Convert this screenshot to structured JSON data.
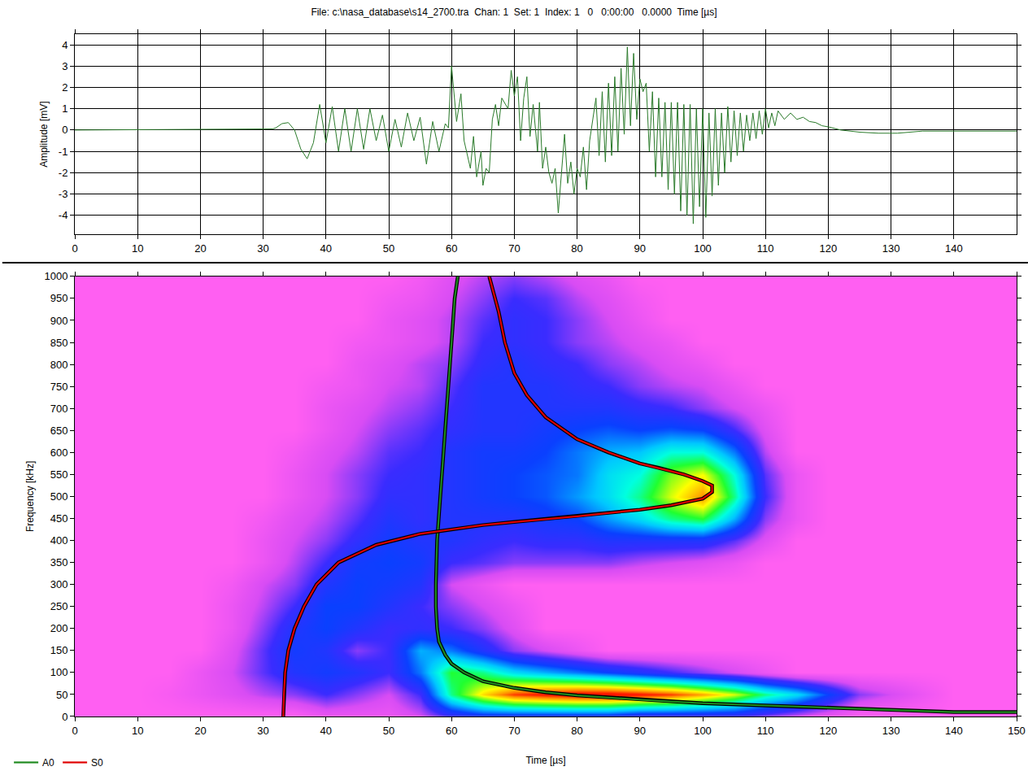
{
  "chart_data": [
    {
      "type": "line",
      "title": "File: c:\\nasa_database\\s14_2700.tra  Chan: 1  Set: 1  Index: 1   0   0:00:00   0.0000  Time [µs]",
      "ylabel": "Amplitude [mV]",
      "color": "#2a7a2a",
      "grid": true,
      "xlim": [
        0,
        150
      ],
      "ylim": [
        -4.9,
        4.5
      ],
      "xticks": [
        0,
        10,
        20,
        30,
        40,
        50,
        60,
        70,
        80,
        90,
        100,
        110,
        120,
        130,
        140
      ],
      "yticks": [
        -4,
        -3,
        -2,
        -1,
        0,
        1,
        2,
        3,
        4
      ],
      "x": [
        0,
        31.5,
        32,
        33,
        34,
        35,
        36,
        37,
        38,
        39,
        40,
        41,
        42,
        43,
        44,
        45,
        46,
        47,
        48,
        49,
        50,
        51,
        52,
        53,
        54,
        55,
        56,
        57,
        58,
        59,
        59.5,
        60,
        60.8,
        61.5,
        62,
        63,
        63.5,
        64,
        64.7,
        65,
        65.5,
        66,
        66.5,
        67,
        67.5,
        68,
        69,
        69.5,
        70,
        70.5,
        71,
        71.5,
        72,
        72.5,
        73,
        73.7,
        74,
        74.5,
        75,
        75.5,
        76,
        76.5,
        77,
        77.5,
        78,
        78.5,
        79,
        79.5,
        80,
        80.5,
        81,
        81.5,
        82,
        83,
        83.5,
        84,
        84.5,
        85,
        85.5,
        86,
        86.5,
        87,
        87.5,
        88,
        88.5,
        89,
        89.5,
        90,
        90.5,
        91,
        91.5,
        92,
        92.5,
        93,
        93.5,
        94,
        94.5,
        95,
        95.5,
        96,
        96.5,
        97,
        97.5,
        98,
        98.5,
        99,
        99.5,
        100,
        100.5,
        101,
        101.5,
        102,
        102.5,
        103,
        103.5,
        104,
        104.5,
        105,
        105.5,
        106,
        106.5,
        107,
        107.5,
        108,
        108.5,
        109,
        109.5,
        110,
        110.5,
        111,
        111.5,
        112,
        113,
        114,
        115,
        116,
        117,
        118,
        119,
        120,
        122,
        125,
        128,
        131,
        135,
        140,
        150
      ],
      "values": [
        0,
        0.05,
        0.1,
        0.3,
        0.35,
        0,
        -0.9,
        -1.35,
        -0.6,
        1.2,
        -0.6,
        1.1,
        -1,
        1,
        -1,
        1,
        -0.9,
        1,
        -0.5,
        0.7,
        -1,
        0.5,
        -0.8,
        0.8,
        -0.5,
        0.6,
        -1.6,
        0.4,
        -1,
        0.3,
        0.1,
        3,
        0.4,
        1.7,
        -0.5,
        -1.8,
        -0.3,
        -2.2,
        -1,
        -2.6,
        -1.8,
        -2,
        0.5,
        1.2,
        0.2,
        1.5,
        1,
        2.8,
        1.6,
        2.5,
        -0.5,
        1.5,
        2.5,
        -0.3,
        1.2,
        -1,
        1.3,
        -1.8,
        -0.8,
        -2,
        -2.5,
        -1.8,
        -3.9,
        -2,
        -0.2,
        -2.5,
        -1.5,
        -3,
        -1.8,
        -2.2,
        -0.8,
        -2.8,
        -0.5,
        1.5,
        -1.2,
        1.8,
        -1.5,
        2.2,
        -1.2,
        2.5,
        -1,
        2.9,
        -0.2,
        3.9,
        0.2,
        3.6,
        0.5,
        2.4,
        1.8,
        2.2,
        -1,
        1.8,
        -2.2,
        1.5,
        -2.2,
        1.3,
        -2.8,
        1.3,
        -3,
        1.3,
        -3.8,
        1.2,
        -4,
        1.2,
        -4.4,
        1,
        -3.6,
        1,
        -4.1,
        0.8,
        -3.1,
        1,
        -2.6,
        0.8,
        -2,
        1.1,
        -1.5,
        0.9,
        -1.2,
        0.8,
        -1,
        0.7,
        -0.5,
        0.8,
        -0.4,
        0.9,
        -0.2,
        1,
        0.1,
        0.8,
        0.2,
        0.9,
        0.5,
        0.8,
        0.5,
        0.6,
        0.4,
        0.35,
        0.2,
        0.15,
        0,
        -0.1,
        -0.15,
        -0.15,
        -0.05,
        -0.05,
        -0.05
      ]
    },
    {
      "type": "heatmap",
      "xlabel": "Time [µs]",
      "ylabel": "Frequency [kHz]",
      "grid": false,
      "legend": "bottom left",
      "xlim": [
        0,
        150
      ],
      "ylim": [
        0,
        1000
      ],
      "xticks": [
        0,
        10,
        20,
        30,
        40,
        50,
        60,
        70,
        80,
        90,
        100,
        110,
        120,
        130,
        140,
        150
      ],
      "yticks": [
        0,
        50,
        100,
        150,
        200,
        250,
        300,
        350,
        400,
        450,
        500,
        550,
        600,
        650,
        700,
        750,
        800,
        850,
        900,
        950,
        1000
      ],
      "zlim": [
        0,
        100
      ],
      "x": [
        0,
        5,
        10,
        15,
        20,
        25,
        30,
        35,
        40,
        45,
        50,
        55,
        60,
        65,
        70,
        75,
        80,
        85,
        90,
        95,
        100,
        105,
        110,
        115,
        120,
        125,
        130,
        135,
        140,
        145,
        150
      ],
      "y": [
        0,
        50,
        100,
        150,
        200,
        250,
        300,
        350,
        400,
        450,
        500,
        550,
        600,
        650,
        700,
        750,
        800,
        850,
        900,
        950,
        1000
      ],
      "z": [
        [
          0,
          0,
          0,
          0,
          0,
          0,
          0,
          0,
          5,
          5,
          5,
          10,
          20,
          25,
          25,
          25,
          25,
          25,
          20,
          20,
          20,
          20,
          15,
          10,
          5,
          0,
          0,
          0,
          0,
          0,
          0
        ],
        [
          0,
          0,
          0,
          2,
          5,
          8,
          12,
          15,
          20,
          15,
          10,
          20,
          55,
          75,
          88,
          92,
          95,
          95,
          92,
          88,
          80,
          70,
          55,
          45,
          30,
          15,
          10,
          5,
          0,
          0,
          0
        ],
        [
          0,
          0,
          0,
          0,
          5,
          10,
          18,
          25,
          28,
          25,
          20,
          35,
          60,
          55,
          45,
          40,
          35,
          30,
          25,
          20,
          15,
          10,
          5,
          0,
          0,
          0,
          0,
          0,
          0,
          0,
          0
        ],
        [
          0,
          0,
          0,
          0,
          0,
          8,
          18,
          28,
          25,
          15,
          20,
          40,
          35,
          25,
          15,
          10,
          5,
          0,
          0,
          0,
          0,
          0,
          0,
          0,
          0,
          0,
          0,
          0,
          0,
          0,
          0
        ],
        [
          0,
          0,
          0,
          0,
          0,
          5,
          15,
          25,
          30,
          25,
          20,
          22,
          20,
          15,
          8,
          0,
          0,
          0,
          0,
          0,
          0,
          0,
          0,
          0,
          0,
          0,
          0,
          0,
          0,
          0,
          0
        ],
        [
          0,
          0,
          0,
          0,
          0,
          5,
          12,
          20,
          30,
          30,
          25,
          20,
          15,
          10,
          5,
          0,
          0,
          0,
          0,
          0,
          0,
          0,
          0,
          0,
          0,
          0,
          0,
          0,
          0,
          0,
          0
        ],
        [
          0,
          0,
          0,
          0,
          0,
          3,
          10,
          15,
          25,
          30,
          28,
          25,
          10,
          5,
          0,
          0,
          0,
          0,
          0,
          0,
          0,
          0,
          0,
          0,
          0,
          0,
          0,
          0,
          0,
          0,
          0
        ],
        [
          0,
          0,
          0,
          0,
          0,
          0,
          5,
          12,
          20,
          28,
          30,
          28,
          20,
          18,
          15,
          15,
          15,
          15,
          12,
          10,
          8,
          5,
          0,
          0,
          0,
          0,
          0,
          0,
          0,
          0,
          0
        ],
        [
          0,
          0,
          0,
          0,
          0,
          0,
          5,
          10,
          15,
          22,
          28,
          25,
          25,
          22,
          20,
          22,
          22,
          25,
          25,
          25,
          25,
          18,
          8,
          0,
          0,
          0,
          0,
          0,
          0,
          0,
          0
        ],
        [
          0,
          0,
          0,
          0,
          0,
          0,
          3,
          8,
          12,
          18,
          25,
          22,
          25,
          25,
          25,
          28,
          30,
          38,
          45,
          55,
          60,
          40,
          15,
          5,
          0,
          0,
          0,
          0,
          0,
          0,
          0
        ],
        [
          0,
          0,
          0,
          0,
          0,
          0,
          0,
          5,
          10,
          15,
          22,
          22,
          25,
          28,
          30,
          32,
          38,
          45,
          55,
          70,
          82,
          55,
          20,
          5,
          0,
          0,
          0,
          0,
          0,
          0,
          0
        ],
        [
          0,
          0,
          0,
          0,
          0,
          0,
          0,
          5,
          10,
          15,
          20,
          22,
          25,
          28,
          30,
          32,
          35,
          45,
          50,
          65,
          72,
          50,
          18,
          5,
          0,
          0,
          0,
          0,
          0,
          0,
          0
        ],
        [
          0,
          0,
          0,
          0,
          0,
          0,
          0,
          3,
          8,
          12,
          18,
          20,
          25,
          28,
          28,
          30,
          35,
          40,
          42,
          50,
          50,
          35,
          12,
          0,
          0,
          0,
          0,
          0,
          0,
          0,
          0
        ],
        [
          0,
          0,
          0,
          0,
          0,
          0,
          0,
          0,
          5,
          10,
          15,
          18,
          22,
          25,
          25,
          28,
          30,
          32,
          30,
          32,
          30,
          20,
          8,
          0,
          0,
          0,
          0,
          0,
          0,
          0,
          0
        ],
        [
          0,
          0,
          0,
          0,
          0,
          0,
          0,
          0,
          5,
          8,
          12,
          15,
          20,
          25,
          25,
          25,
          25,
          25,
          22,
          20,
          15,
          10,
          5,
          0,
          0,
          0,
          0,
          0,
          0,
          0,
          0
        ],
        [
          0,
          0,
          0,
          0,
          0,
          0,
          0,
          0,
          3,
          5,
          10,
          12,
          18,
          25,
          25,
          25,
          22,
          20,
          15,
          12,
          10,
          5,
          0,
          0,
          0,
          0,
          0,
          0,
          0,
          0,
          0
        ],
        [
          0,
          0,
          0,
          0,
          0,
          0,
          0,
          0,
          0,
          5,
          8,
          12,
          15,
          22,
          25,
          22,
          20,
          15,
          12,
          8,
          5,
          0,
          0,
          0,
          0,
          0,
          0,
          0,
          0,
          0,
          0
        ],
        [
          0,
          0,
          0,
          0,
          0,
          0,
          0,
          0,
          0,
          3,
          5,
          8,
          12,
          20,
          22,
          20,
          15,
          12,
          8,
          5,
          0,
          0,
          0,
          0,
          0,
          0,
          0,
          0,
          0,
          0,
          0
        ],
        [
          0,
          0,
          0,
          0,
          0,
          0,
          0,
          0,
          0,
          0,
          5,
          8,
          12,
          18,
          22,
          20,
          15,
          10,
          5,
          0,
          0,
          0,
          0,
          0,
          0,
          0,
          0,
          0,
          0,
          0,
          0
        ],
        [
          0,
          0,
          0,
          0,
          0,
          0,
          0,
          0,
          0,
          0,
          3,
          5,
          10,
          15,
          20,
          18,
          12,
          8,
          3,
          0,
          0,
          0,
          0,
          0,
          0,
          0,
          0,
          0,
          0,
          0,
          0
        ],
        [
          0,
          0,
          0,
          0,
          0,
          0,
          0,
          0,
          0,
          0,
          0,
          3,
          8,
          12,
          15,
          12,
          8,
          5,
          0,
          0,
          0,
          0,
          0,
          0,
          0,
          0,
          0,
          0,
          0,
          0,
          0
        ]
      ],
      "series": [
        {
          "name": "A0",
          "type": "line",
          "color": "#1f8a1f",
          "x": [
            61,
            60.5,
            60,
            59.5,
            59,
            58.5,
            58,
            57.7,
            57.5,
            57.5,
            57.7,
            58,
            59,
            60,
            62,
            65,
            70,
            75,
            80,
            90,
            100,
            110,
            120,
            130,
            136,
            140,
            150
          ],
          "values": [
            1000,
            950,
            850,
            750,
            650,
            550,
            450,
            400,
            300,
            250,
            200,
            170,
            140,
            120,
            100,
            80,
            65,
            55,
            48,
            38,
            30,
            25,
            20,
            15,
            12,
            10,
            10
          ]
        },
        {
          "name": "S0",
          "type": "line",
          "color": "#e00000",
          "x": [
            33.2,
            33.3,
            33.5,
            34,
            35,
            36.5,
            38.5,
            42,
            48,
            55,
            60,
            65,
            70,
            80,
            90,
            95,
            100,
            101.5,
            101.5,
            100,
            97,
            93,
            90,
            85,
            80,
            75,
            72,
            70,
            68.5,
            67.5,
            66
          ],
          "values": [
            0,
            50,
            100,
            150,
            200,
            250,
            300,
            350,
            390,
            415,
            425,
            435,
            442,
            455,
            470,
            480,
            495,
            510,
            525,
            535,
            550,
            565,
            575,
            600,
            630,
            680,
            730,
            780,
            850,
            920,
            1000
          ]
        }
      ]
    }
  ]
}
